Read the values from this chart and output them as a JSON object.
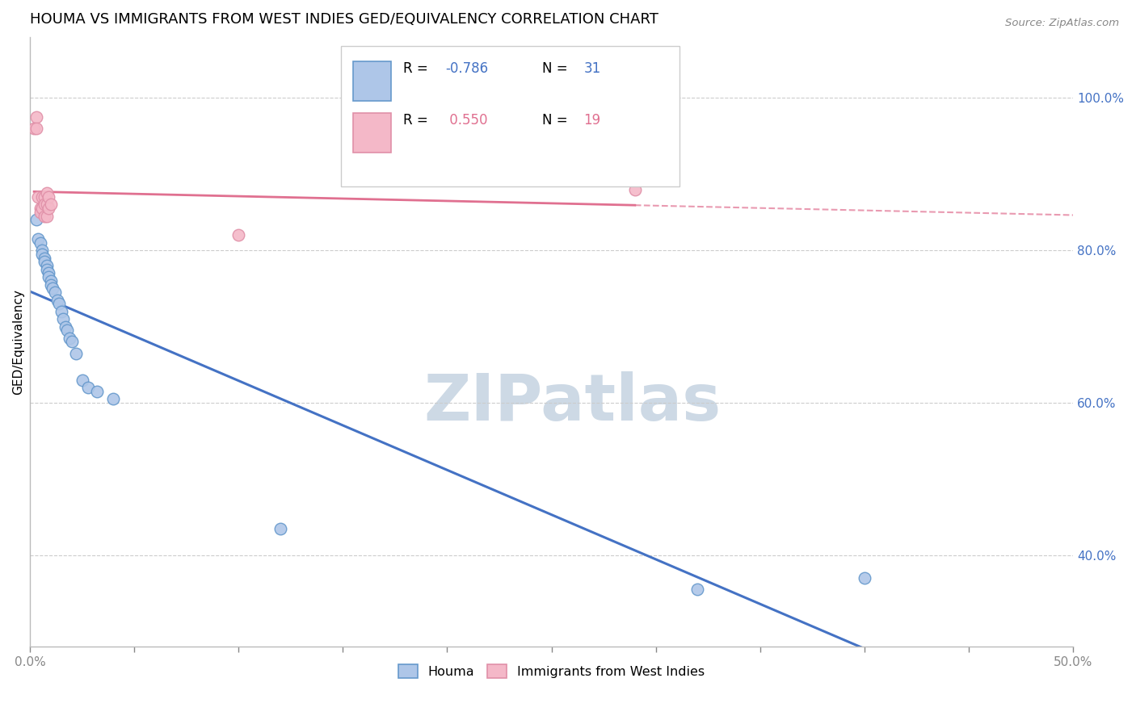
{
  "title": "HOUMA VS IMMIGRANTS FROM WEST INDIES GED/EQUIVALENCY CORRELATION CHART",
  "source": "Source: ZipAtlas.com",
  "ylabel": "GED/Equivalency",
  "xlim": [
    0.0,
    0.5
  ],
  "ylim": [
    0.28,
    1.08
  ],
  "xticks": [
    0.0,
    0.05,
    0.1,
    0.15,
    0.2,
    0.25,
    0.3,
    0.35,
    0.4,
    0.45,
    0.5
  ],
  "xtick_labels": [
    "0.0%",
    "",
    "",
    "",
    "",
    "",
    "",
    "",
    "",
    "",
    "50.0%"
  ],
  "yticks_right": [
    0.4,
    0.6,
    0.8,
    1.0
  ],
  "ytick_labels_right": [
    "40.0%",
    "60.0%",
    "80.0%",
    "100.0%"
  ],
  "houma_R": -0.786,
  "houma_N": 31,
  "immigrants_R": 0.55,
  "immigrants_N": 19,
  "houma_color": "#aec6e8",
  "houma_edge_color": "#6699cc",
  "houma_line_color": "#4472c4",
  "immigrants_color": "#f4b8c8",
  "immigrants_edge_color": "#e090a8",
  "immigrants_line_color": "#e07090",
  "houma_x": [
    0.003,
    0.004,
    0.005,
    0.006,
    0.006,
    0.007,
    0.007,
    0.008,
    0.008,
    0.009,
    0.009,
    0.01,
    0.01,
    0.011,
    0.012,
    0.013,
    0.014,
    0.015,
    0.016,
    0.017,
    0.018,
    0.019,
    0.02,
    0.022,
    0.025,
    0.028,
    0.032,
    0.04,
    0.12,
    0.32,
    0.4
  ],
  "houma_y": [
    0.84,
    0.815,
    0.81,
    0.8,
    0.795,
    0.79,
    0.785,
    0.78,
    0.775,
    0.77,
    0.765,
    0.76,
    0.755,
    0.75,
    0.745,
    0.735,
    0.73,
    0.72,
    0.71,
    0.7,
    0.695,
    0.685,
    0.68,
    0.665,
    0.63,
    0.62,
    0.615,
    0.605,
    0.435,
    0.355,
    0.37
  ],
  "immigrants_x": [
    0.002,
    0.003,
    0.003,
    0.004,
    0.005,
    0.005,
    0.006,
    0.006,
    0.007,
    0.007,
    0.007,
    0.008,
    0.008,
    0.008,
    0.009,
    0.009,
    0.01,
    0.1,
    0.29
  ],
  "immigrants_y": [
    0.96,
    0.975,
    0.96,
    0.87,
    0.855,
    0.85,
    0.87,
    0.855,
    0.87,
    0.86,
    0.845,
    0.875,
    0.86,
    0.845,
    0.87,
    0.855,
    0.86,
    0.82,
    0.88
  ],
  "grid_color": "#cccccc",
  "background_color": "#ffffff",
  "title_fontsize": 13,
  "axis_label_fontsize": 11,
  "tick_fontsize": 11,
  "watermark_text": "ZIPatlas",
  "watermark_color": "#cdd9e5"
}
